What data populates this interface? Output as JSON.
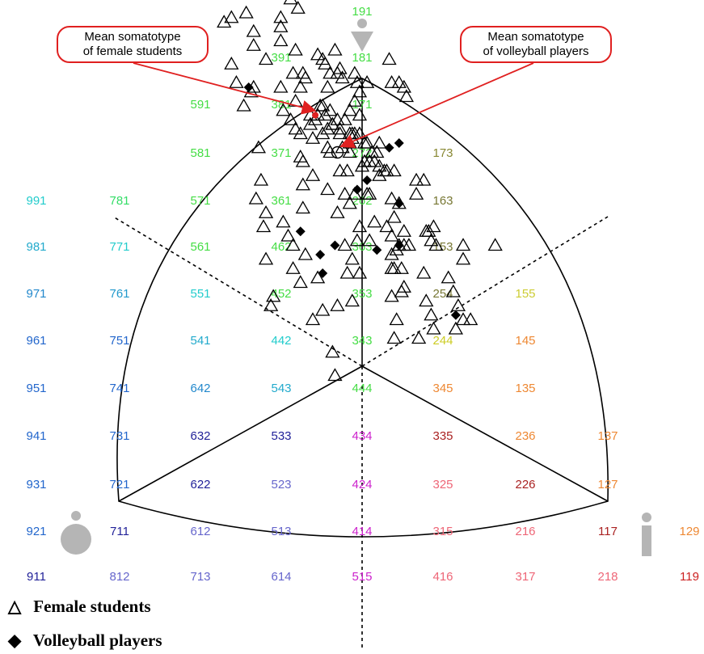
{
  "chart_data": {
    "type": "scatter",
    "title": "",
    "legend": [
      {
        "symbol": "△",
        "label": "Female students"
      },
      {
        "symbol": "◆",
        "label": "Volleyball players"
      }
    ],
    "callouts": [
      {
        "text_lines": [
          "Mean somatotype",
          "of female students"
        ]
      },
      {
        "text_lines": [
          "Mean somatotype",
          "of volleyball players"
        ]
      }
    ],
    "grid_labels": [
      {
        "code": "191",
        "color": "#44dd44"
      },
      {
        "code": "391",
        "color": "#44dd44"
      },
      {
        "code": "181",
        "color": "#44dd44"
      },
      {
        "code": "591",
        "color": "#44dd44"
      },
      {
        "code": "381",
        "color": "#44dd44"
      },
      {
        "code": "171",
        "color": "#44dd44"
      },
      {
        "code": "581",
        "color": "#44dd44"
      },
      {
        "code": "371",
        "color": "#44dd44"
      },
      {
        "code": "272",
        "color": "#44dd44"
      },
      {
        "code": "173",
        "color": "#888833"
      },
      {
        "code": "991",
        "color": "#22cccc"
      },
      {
        "code": "781",
        "color": "#33dd66"
      },
      {
        "code": "571",
        "color": "#44dd44"
      },
      {
        "code": "361",
        "color": "#44dd44"
      },
      {
        "code": "262",
        "color": "#44dd44"
      },
      {
        "code": "163",
        "color": "#777733"
      },
      {
        "code": "981",
        "color": "#22aacc"
      },
      {
        "code": "771",
        "color": "#22cccc"
      },
      {
        "code": "561",
        "color": "#44dd44"
      },
      {
        "code": "462",
        "color": "#44dd44"
      },
      {
        "code": "363",
        "color": "#44dd44"
      },
      {
        "code": "153",
        "color": "#777733"
      },
      {
        "code": "971",
        "color": "#2288cc"
      },
      {
        "code": "761",
        "color": "#2299cc"
      },
      {
        "code": "551",
        "color": "#22cccc"
      },
      {
        "code": "452",
        "color": "#44dd44"
      },
      {
        "code": "353",
        "color": "#44dd44"
      },
      {
        "code": "254",
        "color": "#777733"
      },
      {
        "code": "155",
        "color": "#cccc33"
      },
      {
        "code": "961",
        "color": "#2266cc"
      },
      {
        "code": "751",
        "color": "#2266cc"
      },
      {
        "code": "541",
        "color": "#22aacc"
      },
      {
        "code": "442",
        "color": "#22cccc"
      },
      {
        "code": "343",
        "color": "#44dd44"
      },
      {
        "code": "244",
        "color": "#cccc22"
      },
      {
        "code": "145",
        "color": "#ee8833"
      },
      {
        "code": "951",
        "color": "#2266cc"
      },
      {
        "code": "741",
        "color": "#2266cc"
      },
      {
        "code": "642",
        "color": "#2288cc"
      },
      {
        "code": "543",
        "color": "#22aacc"
      },
      {
        "code": "444",
        "color": "#44dd44"
      },
      {
        "code": "345",
        "color": "#ee8833"
      },
      {
        "code": "135",
        "color": "#ee8833"
      },
      {
        "code": "941",
        "color": "#2266cc"
      },
      {
        "code": "731",
        "color": "#2266cc"
      },
      {
        "code": "632",
        "color": "#222299"
      },
      {
        "code": "533",
        "color": "#222299"
      },
      {
        "code": "434",
        "color": "#cc22cc"
      },
      {
        "code": "335",
        "color": "#aa2222"
      },
      {
        "code": "236",
        "color": "#ee8833"
      },
      {
        "code": "137",
        "color": "#ee8833"
      },
      {
        "code": "931",
        "color": "#2266cc"
      },
      {
        "code": "721",
        "color": "#2266cc"
      },
      {
        "code": "622",
        "color": "#222299"
      },
      {
        "code": "523",
        "color": "#6666cc"
      },
      {
        "code": "424",
        "color": "#cc22cc"
      },
      {
        "code": "325",
        "color": "#ee6677"
      },
      {
        "code": "226",
        "color": "#aa2222"
      },
      {
        "code": "127",
        "color": "#ee8833"
      },
      {
        "code": "921",
        "color": "#2266cc"
      },
      {
        "code": "711",
        "color": "#222299"
      },
      {
        "code": "612",
        "color": "#6666cc"
      },
      {
        "code": "513",
        "color": "#6666cc"
      },
      {
        "code": "414",
        "color": "#cc22cc"
      },
      {
        "code": "315",
        "color": "#ee6677"
      },
      {
        "code": "216",
        "color": "#ee6677"
      },
      {
        "code": "117",
        "color": "#aa2222"
      },
      {
        "code": "129",
        "color": "#ee8833"
      },
      {
        "code": "911",
        "color": "#222299"
      },
      {
        "code": "812",
        "color": "#6666cc"
      },
      {
        "code": "713",
        "color": "#6666cc"
      },
      {
        "code": "614",
        "color": "#6666cc"
      },
      {
        "code": "515",
        "color": "#cc22cc"
      },
      {
        "code": "416",
        "color": "#ee6677"
      },
      {
        "code": "317",
        "color": "#ee6677"
      },
      {
        "code": "218",
        "color": "#ee6677"
      },
      {
        "code": "119",
        "color": "#cc2222"
      }
    ],
    "series": [
      {
        "name": "Female students",
        "marker": "open-triangle",
        "color": "#000000",
        "points": [
          [
            -5.6,
            7.9
          ],
          [
            -4.9,
            8.6
          ],
          [
            -4.7,
            8.1
          ],
          [
            -4.3,
            8.9
          ],
          [
            -4.4,
            7.7
          ],
          [
            -5.3,
            8.0
          ],
          [
            -5.3,
            7.0
          ],
          [
            -5.1,
            6.6
          ],
          [
            -4.4,
            7.4
          ],
          [
            -4.5,
            6.4
          ],
          [
            -4.8,
            6.1
          ],
          [
            -4.2,
            5.2
          ],
          [
            -4.4,
            6.5
          ],
          [
            -3.3,
            7.8
          ],
          [
            -3.3,
            7.5
          ],
          [
            -3.5,
            9.6
          ],
          [
            -3.3,
            8.0
          ],
          [
            -3.9,
            7.1
          ],
          [
            -3.3,
            6.5
          ],
          [
            -3.2,
            6.0
          ],
          [
            -2.9,
            5.8
          ],
          [
            -2.9,
            8.4
          ],
          [
            -2.6,
            8.2
          ],
          [
            -2.7,
            7.3
          ],
          [
            -2.8,
            6.8
          ],
          [
            -2.7,
            6.2
          ],
          [
            -2.4,
            6.8
          ],
          [
            -2.5,
            6.5
          ],
          [
            -2.3,
            6.7
          ],
          [
            -2.7,
            5.6
          ],
          [
            -2.5,
            5.5
          ],
          [
            -2.5,
            5.0
          ],
          [
            -2.4,
            4.9
          ],
          [
            -2.4,
            3.9
          ],
          [
            -2.1,
            5.7
          ],
          [
            -2.1,
            5.9
          ],
          [
            -2.0,
            5.4
          ],
          [
            -1.9,
            5.8
          ],
          [
            -1.8,
            5.9
          ],
          [
            -1.6,
            5.5
          ],
          [
            -1.5,
            5.9
          ],
          [
            -1.4,
            5.6
          ],
          [
            -1.4,
            5.2
          ],
          [
            -1.3,
            6.0
          ],
          [
            -1.6,
            6.1
          ],
          [
            -1.7,
            6.1
          ],
          [
            -1.8,
            7.2
          ],
          [
            -1.6,
            7.1
          ],
          [
            -1.5,
            7.0
          ],
          [
            -1.3,
            6.8
          ],
          [
            -1.4,
            6.5
          ],
          [
            -1.1,
            7.3
          ],
          [
            -1.2,
            5.7
          ],
          [
            -1.3,
            5.1
          ],
          [
            -0.9,
            5.6
          ],
          [
            -1.0,
            6.8
          ],
          [
            -0.9,
            6.9
          ],
          [
            -0.8,
            6.7
          ],
          [
            -0.8,
            5.2
          ],
          [
            -1.2,
            5.7
          ],
          [
            -0.7,
            5.8
          ],
          [
            -0.9,
            5.5
          ],
          [
            -1.0,
            5.8
          ],
          [
            -0.5,
            5.1
          ],
          [
            -0.6,
            4.7
          ],
          [
            -0.9,
            4.7
          ],
          [
            -0.4,
            5.4
          ],
          [
            -0.5,
            5.5
          ],
          [
            -0.3,
            6.8
          ],
          [
            -0.2,
            6.6
          ],
          [
            -0.3,
            6.2
          ],
          [
            -0.1,
            5.9
          ],
          [
            -0.1,
            5.5
          ],
          [
            0.1,
            5.3
          ],
          [
            -0.4,
            5.5
          ],
          [
            -0.5,
            5.3
          ],
          [
            -0.7,
            4.2
          ],
          [
            -0.3,
            4.2
          ],
          [
            0.0,
            4.8
          ],
          [
            0.3,
            4.9
          ],
          [
            0.4,
            5.1
          ],
          [
            0.6,
            5.1
          ],
          [
            0.7,
            5.3
          ],
          [
            0.7,
            4.8
          ],
          [
            0.2,
            5.3
          ],
          [
            0.5,
            4.9
          ],
          [
            0.1,
            4.9
          ],
          [
            0.2,
            4.2
          ],
          [
            0.3,
            4.2
          ],
          [
            0.7,
            4.6
          ],
          [
            0.9,
            4.7
          ],
          [
            1.0,
            4.7
          ],
          [
            1.2,
            6.6
          ],
          [
            1.1,
            7.1
          ],
          [
            1.5,
            6.6
          ],
          [
            1.7,
            6.5
          ],
          [
            1.8,
            6.3
          ],
          [
            0.2,
            6.6
          ],
          [
            -0.1,
            6.4
          ],
          [
            -0.5,
            6.0
          ],
          [
            -0.3,
            5.5
          ],
          [
            1.3,
            4.7
          ],
          [
            1.2,
            4.1
          ],
          [
            1.5,
            4.0
          ],
          [
            1.3,
            3.7
          ],
          [
            1.0,
            3.5
          ],
          [
            1.2,
            3.3
          ],
          [
            1.5,
            3.1
          ],
          [
            1.7,
            3.4
          ],
          [
            1.2,
            2.9
          ],
          [
            1.4,
            3.0
          ],
          [
            1.9,
            3.1
          ],
          [
            2.2,
            4.2
          ],
          [
            2.2,
            4.5
          ],
          [
            2.5,
            4.5
          ],
          [
            2.6,
            3.4
          ],
          [
            2.7,
            3.4
          ],
          [
            2.9,
            3.5
          ],
          [
            2.8,
            3.2
          ],
          [
            3.0,
            3.1
          ],
          [
            3.5,
            2.4
          ],
          [
            3.7,
            2.1
          ],
          [
            3.9,
            1.8
          ],
          [
            4.1,
            1.5
          ],
          [
            3.8,
            1.3
          ],
          [
            4.4,
            1.5
          ],
          [
            5.4,
            3.1
          ],
          [
            4.1,
            3.1
          ],
          [
            4.1,
            2.8
          ],
          [
            2.5,
            2.5
          ],
          [
            2.6,
            1.9
          ],
          [
            2.8,
            1.6
          ],
          [
            2.9,
            1.3
          ],
          [
            2.3,
            1.1
          ],
          [
            1.7,
            3.1
          ],
          [
            1.3,
            1.1
          ],
          [
            -1.2,
            0.8
          ],
          [
            -1.1,
            0.3
          ],
          [
            -1.0,
            1.8
          ],
          [
            -0.6,
            2.5
          ],
          [
            -0.7,
            3.1
          ],
          [
            0.3,
            3.2
          ],
          [
            0.5,
            3.6
          ],
          [
            1.3,
            2.6
          ],
          [
            1.6,
            2.6
          ],
          [
            1.7,
            2.2
          ],
          [
            1.6,
            2.1
          ],
          [
            1.2,
            2.6
          ],
          [
            1.2,
            2.0
          ],
          [
            1.4,
            1.5
          ],
          [
            -0.1,
            3.5
          ],
          [
            -0.1,
            2.5
          ],
          [
            -0.4,
            1.9
          ],
          [
            -0.4,
            2.8
          ],
          [
            -0.2,
            3.2
          ],
          [
            -0.5,
            4.0
          ],
          [
            -1.0,
            3.8
          ],
          [
            -1.4,
            4.3
          ],
          [
            -1.6,
            1.7
          ],
          [
            -2.0,
            1.5
          ],
          [
            -4.0,
            3.5
          ],
          [
            -3.9,
            2.8
          ],
          [
            -3.2,
            3.6
          ],
          [
            -3.0,
            3.3
          ],
          [
            -2.8,
            3.1
          ],
          [
            -3.6,
            2.0
          ],
          [
            -3.7,
            1.8
          ],
          [
            -2.8,
            2.6
          ],
          [
            -2.4,
            4.4
          ],
          [
            -2.0,
            4.6
          ],
          [
            -4.1,
            4.5
          ],
          [
            -3.9,
            3.8
          ],
          [
            -4.3,
            4.1
          ],
          [
            -2.5,
            2.3
          ],
          [
            -1.8,
            2.4
          ],
          [
            -2.3,
            2.9
          ]
        ]
      },
      {
        "name": "Volleyball players",
        "marker": "filled-diamond",
        "color": "#000000",
        "points": [
          [
            -3.7,
            8.7
          ],
          [
            -2.8,
            8.5
          ],
          [
            -4.6,
            6.5
          ],
          [
            -0.2,
            4.3
          ],
          [
            0.2,
            4.5
          ],
          [
            1.1,
            5.2
          ],
          [
            1.5,
            5.3
          ],
          [
            1.5,
            4.0
          ],
          [
            1.5,
            3.1
          ],
          [
            0.6,
            3.0
          ],
          [
            3.8,
            1.6
          ],
          [
            -2.5,
            3.4
          ],
          [
            -1.7,
            2.9
          ],
          [
            -1.6,
            2.5
          ],
          [
            -1.1,
            3.1
          ]
        ]
      }
    ],
    "means": [
      {
        "name": "Mean somatotype of female students",
        "x": -1.9,
        "y": 5.9
      },
      {
        "name": "Mean somatotype of volleyball players",
        "x": -1.0,
        "y": 5.1
      }
    ]
  }
}
